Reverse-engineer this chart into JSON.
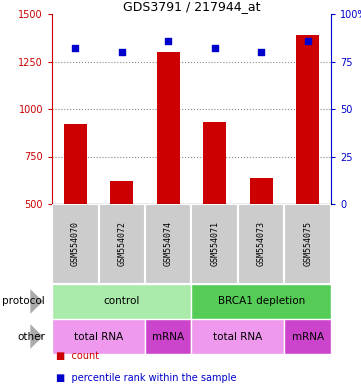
{
  "title": "GDS3791 / 217944_at",
  "samples": [
    "GSM554070",
    "GSM554072",
    "GSM554074",
    "GSM554071",
    "GSM554073",
    "GSM554075"
  ],
  "bar_values": [
    920,
    620,
    1300,
    930,
    635,
    1390
  ],
  "bar_bottom": 500,
  "scatter_values": [
    82,
    80,
    86,
    82,
    80,
    86
  ],
  "ylim_left": [
    500,
    1500
  ],
  "ylim_right": [
    0,
    100
  ],
  "yticks_left": [
    500,
    750,
    1000,
    1250,
    1500
  ],
  "yticks_right": [
    0,
    25,
    50,
    75,
    100
  ],
  "bar_color": "#cc0000",
  "scatter_color": "#0000cc",
  "protocol_labels": [
    {
      "text": "control",
      "start": 0,
      "end": 3,
      "color": "#aaeaaa"
    },
    {
      "text": "BRCA1 depletion",
      "start": 3,
      "end": 6,
      "color": "#55cc55"
    }
  ],
  "other_labels": [
    {
      "text": "total RNA",
      "start": 0,
      "end": 2,
      "color": "#ee99ee"
    },
    {
      "text": "mRNA",
      "start": 2,
      "end": 3,
      "color": "#cc44cc"
    },
    {
      "text": "total RNA",
      "start": 3,
      "end": 5,
      "color": "#ee99ee"
    },
    {
      "text": "mRNA",
      "start": 5,
      "end": 6,
      "color": "#cc44cc"
    }
  ],
  "legend_count_color": "#cc0000",
  "legend_percentile_color": "#0000cc",
  "grid_color": "#555555",
  "sample_box_color": "#cccccc",
  "left_axis_color": "#cc0000",
  "right_axis_color": "#0000cc",
  "dotted_lines": [
    750,
    1000,
    1250
  ]
}
